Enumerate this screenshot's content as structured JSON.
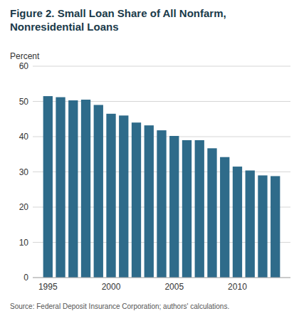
{
  "chart_data": {
    "type": "bar",
    "title": "Figure 2. Small Loan Share of All Nonfarm, Nonresidential Loans",
    "ylabel": "Percent",
    "annotations": [
      "Source: Federal Deposit Insurance Corporation; authors' calculations."
    ],
    "x": [
      1995,
      1996,
      1997,
      1998,
      1999,
      2000,
      2001,
      2002,
      2003,
      2004,
      2005,
      2006,
      2007,
      2008,
      2009,
      2010,
      2011,
      2012,
      2013
    ],
    "values": [
      51.5,
      51.2,
      50.3,
      50.5,
      49.0,
      46.5,
      46.0,
      44.0,
      43.2,
      41.8,
      40.2,
      39.0,
      39.0,
      36.7,
      34.2,
      31.5,
      30.4,
      29.0,
      28.8
    ],
    "color": "#2e6b8a",
    "xlim": [
      1993.8,
      2014.2
    ],
    "xticks": [
      1995,
      2000,
      2005,
      2010
    ],
    "ylim": [
      0,
      60
    ],
    "yticks": [
      0,
      10,
      20,
      30,
      40,
      50,
      60
    ],
    "grid": true
  }
}
